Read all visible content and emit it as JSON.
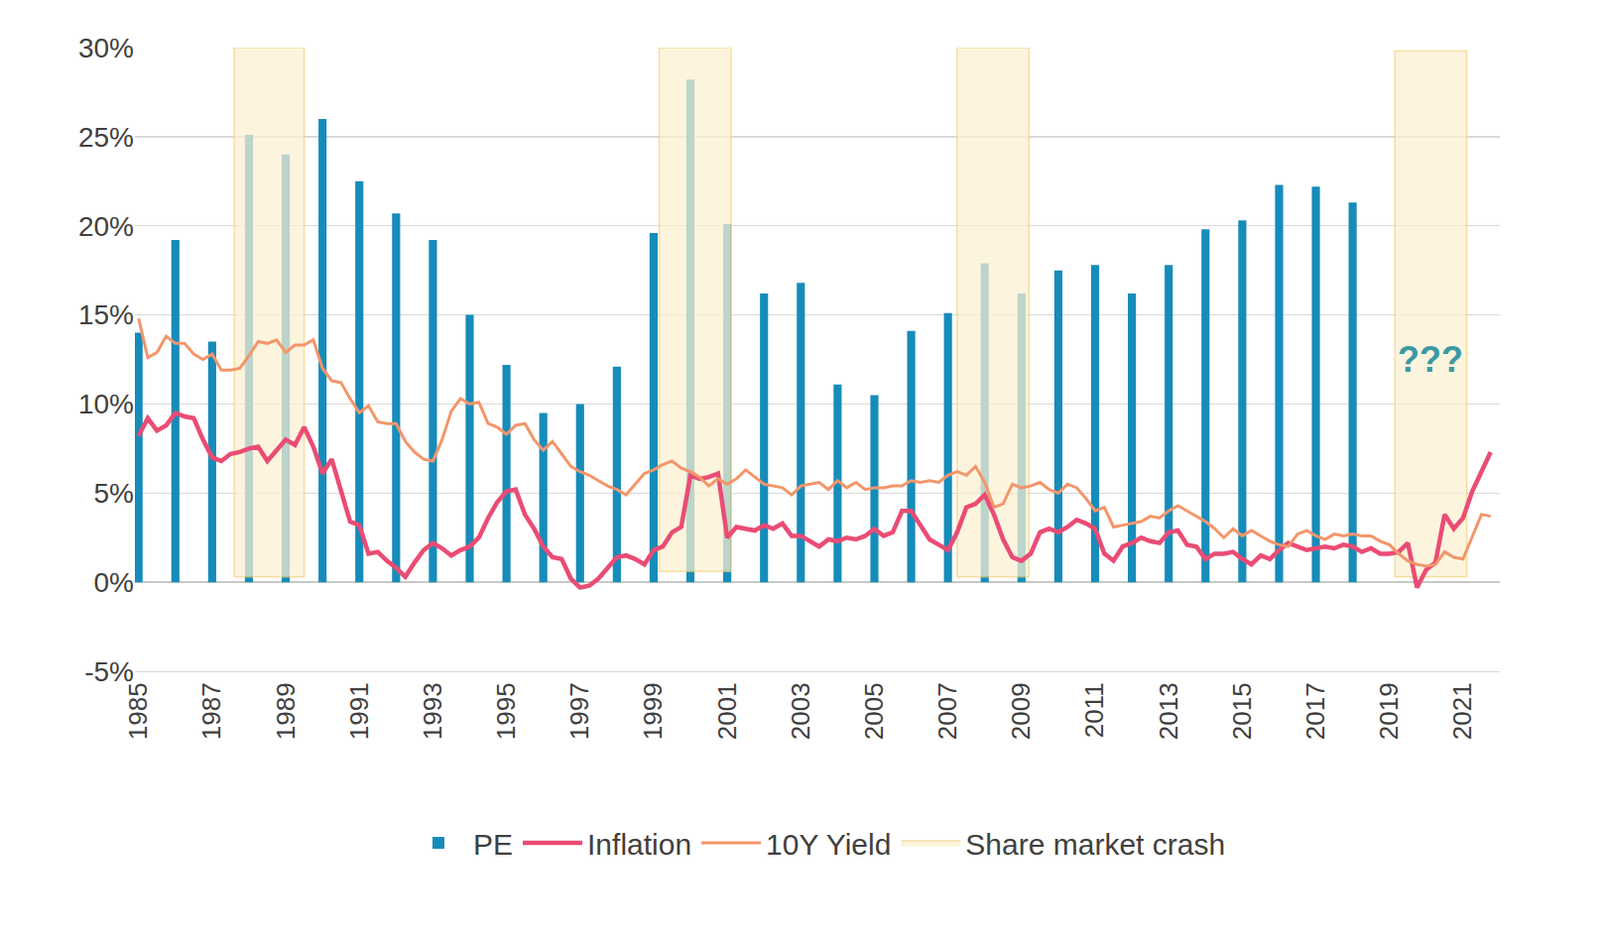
{
  "chart_data": {
    "type": "bar",
    "xlim": [
      1984.9,
      2022
    ],
    "xticks": [
      1985,
      1987,
      1989,
      1991,
      1993,
      1995,
      1997,
      1999,
      2001,
      2003,
      2005,
      2007,
      2009,
      2011,
      2013,
      2015,
      2017,
      2019,
      2021
    ],
    "ylim": [
      -5,
      30
    ],
    "yticks": [
      {
        "value": -5,
        "label": "-5%"
      },
      {
        "value": 0,
        "label": "0%"
      },
      {
        "value": 5,
        "label": "5%"
      },
      {
        "value": 10,
        "label": "10%"
      },
      {
        "value": 15,
        "label": "15%"
      },
      {
        "value": 20,
        "label": "20%"
      },
      {
        "value": 25,
        "label": "25%"
      },
      {
        "value": 30,
        "label": "30%"
      }
    ],
    "grid": true,
    "legend": "bottom",
    "x": [
      1985,
      1985.25,
      1985.5,
      1985.75,
      1986,
      1986.25,
      1986.5,
      1986.75,
      1987,
      1987.25,
      1987.5,
      1987.75,
      1988,
      1988.25,
      1988.5,
      1988.75,
      1989,
      1989.25,
      1989.5,
      1989.75,
      1990,
      1990.25,
      1990.5,
      1990.75,
      1991,
      1991.25,
      1991.5,
      1991.75,
      1992,
      1992.25,
      1992.5,
      1992.75,
      1993,
      1993.25,
      1993.5,
      1993.75,
      1994,
      1994.25,
      1994.5,
      1994.75,
      1995,
      1995.25,
      1995.5,
      1995.75,
      1996,
      1996.25,
      1996.5,
      1996.75,
      1997,
      1997.25,
      1997.5,
      1997.75,
      1998,
      1998.25,
      1998.5,
      1998.75,
      1999,
      1999.25,
      1999.5,
      1999.75,
      2000,
      2000.25,
      2000.5,
      2000.75,
      2001,
      2001.25,
      2001.5,
      2001.75,
      2002,
      2002.25,
      2002.5,
      2002.75,
      2003,
      2003.25,
      2003.5,
      2003.75,
      2004,
      2004.25,
      2004.5,
      2004.75,
      2005,
      2005.25,
      2005.5,
      2005.75,
      2006,
      2006.25,
      2006.5,
      2006.75,
      2007,
      2007.25,
      2007.5,
      2007.75,
      2008,
      2008.25,
      2008.5,
      2008.75,
      2009,
      2009.25,
      2009.5,
      2009.75,
      2010,
      2010.25,
      2010.5,
      2010.75,
      2011,
      2011.25,
      2011.5,
      2011.75,
      2012,
      2012.25,
      2012.5,
      2012.75,
      2013,
      2013.25,
      2013.5,
      2013.75,
      2014,
      2014.25,
      2014.5,
      2014.75,
      2015,
      2015.25,
      2015.5,
      2015.75,
      2016,
      2016.25,
      2016.5,
      2016.75,
      2017,
      2017.25,
      2017.5,
      2017.75,
      2018,
      2018.25,
      2018.5,
      2018.75,
      2019,
      2019.25,
      2019.5,
      2019.75,
      2020,
      2020.25,
      2020.5,
      2020.75,
      2021,
      2021.25,
      2021.5,
      2021.75
    ],
    "series": [
      {
        "name": "PE",
        "type": "bar",
        "color": "#168cba",
        "x": [
          1985,
          1986,
          1987,
          1988,
          1989,
          1990,
          1991,
          1992,
          1993,
          1994,
          1995,
          1996,
          1997,
          1998,
          1999,
          2000,
          2001,
          2002,
          2003,
          2004,
          2005,
          2006,
          2007,
          2008,
          2009,
          2010,
          2011,
          2012,
          2013,
          2014,
          2015,
          2016,
          2017,
          2018
        ],
        "values": [
          14,
          19.2,
          13.5,
          25.1,
          24,
          26,
          22.5,
          20.7,
          19.2,
          15,
          12.2,
          9.5,
          10,
          12.1,
          19.6,
          28.2,
          20.1,
          16.2,
          16.8,
          11.1,
          10.5,
          14.1,
          15.1,
          17.9,
          16.2,
          17.5,
          17.8,
          16.2,
          17.8,
          19.8,
          20.3,
          22.3,
          22.2,
          21.3
        ]
      },
      {
        "name": "Inflation",
        "type": "line",
        "color": "#ea4c74",
        "values": [
          8.2,
          9.2,
          8.5,
          8.8,
          9.5,
          9.3,
          9.2,
          8.0,
          7.0,
          6.8,
          7.2,
          7.3,
          7.5,
          7.6,
          6.8,
          7.4,
          8.0,
          7.7,
          8.7,
          7.6,
          6.1,
          6.9,
          5.2,
          3.4,
          3.2,
          1.6,
          1.7,
          1.2,
          0.8,
          0.3,
          1.1,
          1.8,
          2.2,
          1.9,
          1.5,
          1.8,
          2.0,
          2.5,
          3.6,
          4.5,
          5.1,
          5.2,
          3.8,
          3.0,
          2.0,
          1.4,
          1.3,
          0.2,
          -0.3,
          -0.2,
          0.2,
          0.8,
          1.4,
          1.5,
          1.3,
          1.0,
          1.8,
          2.0,
          2.8,
          3.1,
          6.0,
          5.8,
          5.9,
          6.1,
          2.5,
          3.1,
          3.0,
          2.9,
          3.2,
          3.0,
          3.3,
          2.6,
          2.6,
          2.3,
          2.0,
          2.4,
          2.3,
          2.5,
          2.4,
          2.6,
          3.0,
          2.6,
          2.8,
          4.0,
          4.0,
          3.2,
          2.4,
          2.1,
          1.8,
          2.8,
          4.2,
          4.4,
          4.9,
          3.8,
          2.4,
          1.4,
          1.2,
          1.6,
          2.8,
          3.0,
          2.8,
          3.1,
          3.5,
          3.3,
          3.0,
          1.6,
          1.2,
          2.0,
          2.2,
          2.5,
          2.3,
          2.2,
          2.8,
          2.9,
          2.1,
          2.0,
          1.3,
          1.6,
          1.6,
          1.7,
          1.3,
          1.0,
          1.5,
          1.3,
          1.8,
          2.2,
          2.0,
          1.8,
          1.9,
          2.0,
          1.9,
          2.1,
          2.0,
          1.7,
          1.9,
          1.6,
          1.6,
          1.7,
          2.2,
          -0.3,
          0.7,
          1.1,
          3.8,
          3.0,
          3.6,
          5.1,
          6.2,
          7.3
        ]
      },
      {
        "name": "10Y Yield",
        "type": "line",
        "color": "#f4956a",
        "values": [
          14.8,
          12.6,
          12.9,
          13.8,
          13.4,
          13.4,
          12.8,
          12.5,
          12.8,
          11.9,
          11.9,
          12.0,
          12.7,
          13.5,
          13.4,
          13.6,
          12.9,
          13.3,
          13.3,
          13.6,
          12.0,
          11.3,
          11.2,
          10.3,
          9.5,
          9.9,
          9.0,
          8.9,
          8.9,
          7.9,
          7.3,
          6.9,
          6.8,
          8.0,
          9.6,
          10.3,
          10.0,
          10.1,
          8.9,
          8.7,
          8.3,
          8.8,
          8.9,
          8.0,
          7.4,
          7.9,
          7.2,
          6.5,
          6.2,
          6.0,
          5.7,
          5.4,
          5.2,
          4.9,
          5.5,
          6.1,
          6.3,
          6.6,
          6.8,
          6.4,
          6.2,
          5.9,
          5.4,
          5.8,
          5.5,
          5.8,
          6.3,
          5.9,
          5.5,
          5.4,
          5.3,
          4.9,
          5.4,
          5.5,
          5.6,
          5.2,
          5.7,
          5.3,
          5.6,
          5.2,
          5.3,
          5.3,
          5.4,
          5.4,
          5.7,
          5.6,
          5.7,
          5.6,
          6.0,
          6.2,
          6.0,
          6.5,
          5.6,
          4.2,
          4.4,
          5.5,
          5.3,
          5.4,
          5.6,
          5.2,
          5.0,
          5.5,
          5.3,
          4.7,
          4.0,
          4.2,
          3.1,
          3.2,
          3.3,
          3.4,
          3.7,
          3.6,
          4.0,
          4.3,
          4.0,
          3.7,
          3.4,
          3.0,
          2.5,
          3.0,
          2.6,
          2.9,
          2.6,
          2.3,
          2.1,
          2.0,
          2.7,
          2.9,
          2.6,
          2.4,
          2.7,
          2.6,
          2.7,
          2.6,
          2.6,
          2.3,
          2.1,
          1.6,
          1.2,
          1.0,
          0.9,
          1.0,
          1.7,
          1.4,
          1.3,
          2.6,
          3.8,
          3.7
        ]
      },
      {
        "name": "Share market crash",
        "type": "area",
        "color": "#fdf0d2",
        "periods": [
          {
            "x0": 1987.6,
            "x1": 1989.5,
            "y0": 0.3,
            "y1": 30
          },
          {
            "x0": 1999.15,
            "x1": 2001.1,
            "y0": 0.6,
            "y1": 30
          },
          {
            "x0": 2007.25,
            "x1": 2009.2,
            "y0": 0.3,
            "y1": 30
          },
          {
            "x0": 2019.15,
            "x1": 2021.1,
            "y0": 0.3,
            "y1": 29.8
          }
        ]
      }
    ],
    "annotations": [
      {
        "text": "???",
        "x": 2020.1,
        "y": 12.5,
        "color": "#3a9aa3"
      }
    ]
  }
}
